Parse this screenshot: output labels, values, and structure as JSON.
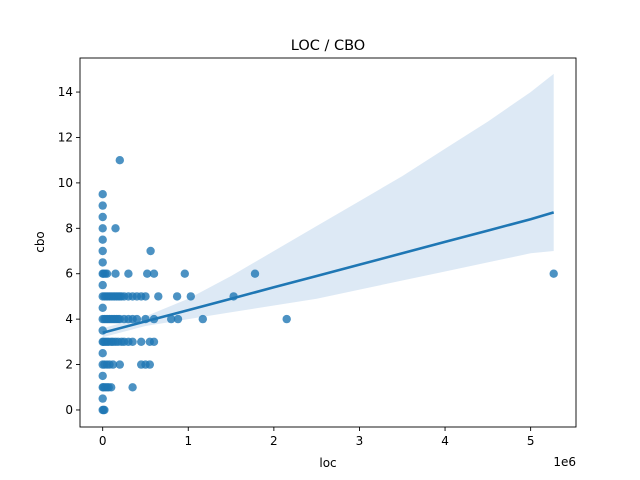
{
  "chart_data": {
    "type": "scatter",
    "title": "LOC / CBO",
    "xlabel": "loc",
    "ylabel": "cbo",
    "x_offset_label": "1e6",
    "xlim": [
      -0.265,
      5.53
    ],
    "ylim": [
      -0.75,
      15.5
    ],
    "x_ticks": [
      0,
      1,
      2,
      3,
      4,
      5
    ],
    "y_ticks": [
      0,
      2,
      4,
      6,
      8,
      10,
      12,
      14
    ],
    "grid": false,
    "colors": {
      "points": "#1f77b4",
      "line": "#1f77b4",
      "band": "#c6dbef"
    },
    "series": [
      {
        "points": [
          [
            0.0,
            0
          ],
          [
            0.01,
            0
          ],
          [
            0.02,
            0
          ],
          [
            0.0,
            0.5
          ],
          [
            0.0,
            1
          ],
          [
            0.01,
            1
          ],
          [
            0.03,
            1
          ],
          [
            0.05,
            1
          ],
          [
            0.07,
            1
          ],
          [
            0.1,
            1
          ],
          [
            0.35,
            1
          ],
          [
            0.0,
            1.5
          ],
          [
            0.0,
            2
          ],
          [
            0.02,
            2
          ],
          [
            0.05,
            2
          ],
          [
            0.08,
            2
          ],
          [
            0.12,
            2
          ],
          [
            0.2,
            2
          ],
          [
            0.45,
            2
          ],
          [
            0.5,
            2
          ],
          [
            0.55,
            2
          ],
          [
            0.0,
            2.5
          ],
          [
            0.0,
            3
          ],
          [
            0.01,
            3
          ],
          [
            0.03,
            3
          ],
          [
            0.05,
            3
          ],
          [
            0.07,
            3
          ],
          [
            0.1,
            3
          ],
          [
            0.12,
            3
          ],
          [
            0.15,
            3
          ],
          [
            0.18,
            3
          ],
          [
            0.22,
            3
          ],
          [
            0.25,
            3
          ],
          [
            0.3,
            3
          ],
          [
            0.35,
            3
          ],
          [
            0.45,
            3
          ],
          [
            0.55,
            3
          ],
          [
            0.6,
            3
          ],
          [
            0.0,
            3.5
          ],
          [
            0.0,
            4
          ],
          [
            0.02,
            4
          ],
          [
            0.04,
            4
          ],
          [
            0.06,
            4
          ],
          [
            0.08,
            4
          ],
          [
            0.1,
            4
          ],
          [
            0.12,
            4
          ],
          [
            0.14,
            4
          ],
          [
            0.16,
            4
          ],
          [
            0.18,
            4
          ],
          [
            0.2,
            4
          ],
          [
            0.25,
            4
          ],
          [
            0.3,
            4
          ],
          [
            0.35,
            4
          ],
          [
            0.4,
            4
          ],
          [
            0.5,
            4
          ],
          [
            0.6,
            4
          ],
          [
            0.8,
            4
          ],
          [
            0.88,
            4
          ],
          [
            1.17,
            4
          ],
          [
            2.15,
            4
          ],
          [
            0.0,
            4.5
          ],
          [
            0.0,
            5
          ],
          [
            0.02,
            5
          ],
          [
            0.04,
            5
          ],
          [
            0.06,
            5
          ],
          [
            0.08,
            5
          ],
          [
            0.1,
            5
          ],
          [
            0.12,
            5
          ],
          [
            0.14,
            5
          ],
          [
            0.16,
            5
          ],
          [
            0.18,
            5
          ],
          [
            0.2,
            5
          ],
          [
            0.22,
            5
          ],
          [
            0.25,
            5
          ],
          [
            0.3,
            5
          ],
          [
            0.35,
            5
          ],
          [
            0.4,
            5
          ],
          [
            0.45,
            5
          ],
          [
            0.5,
            5
          ],
          [
            0.65,
            5
          ],
          [
            0.87,
            5
          ],
          [
            1.03,
            5
          ],
          [
            1.53,
            5
          ],
          [
            0.0,
            5.5
          ],
          [
            0.0,
            6
          ],
          [
            0.01,
            6
          ],
          [
            0.03,
            6
          ],
          [
            0.05,
            6
          ],
          [
            0.15,
            6
          ],
          [
            0.3,
            6
          ],
          [
            0.52,
            6
          ],
          [
            0.6,
            6
          ],
          [
            0.96,
            6
          ],
          [
            1.78,
            6
          ],
          [
            5.27,
            6
          ],
          [
            0.0,
            6.5
          ],
          [
            0.0,
            7
          ],
          [
            0.56,
            7
          ],
          [
            0.0,
            7.5
          ],
          [
            0.0,
            8
          ],
          [
            0.15,
            8
          ],
          [
            0.0,
            8.5
          ],
          [
            0.0,
            9
          ],
          [
            0.0,
            9.5
          ],
          [
            0.2,
            11
          ]
        ]
      }
    ],
    "regression": {
      "x": [
        0.0,
        0.5,
        1.0,
        1.5,
        2.0,
        2.5,
        3.0,
        3.5,
        4.0,
        4.5,
        5.0,
        5.27
      ],
      "y": [
        3.4,
        3.9,
        4.4,
        4.9,
        5.4,
        5.9,
        6.4,
        6.9,
        7.4,
        7.9,
        8.4,
        8.7
      ],
      "ci_upper": [
        3.6,
        4.12,
        4.9,
        5.9,
        7.0,
        8.1,
        9.2,
        10.3,
        11.5,
        12.7,
        14.0,
        14.8
      ],
      "ci_lower": [
        3.2,
        3.7,
        4.0,
        4.3,
        4.6,
        4.9,
        5.3,
        5.7,
        6.1,
        6.5,
        6.9,
        7.0
      ]
    }
  }
}
